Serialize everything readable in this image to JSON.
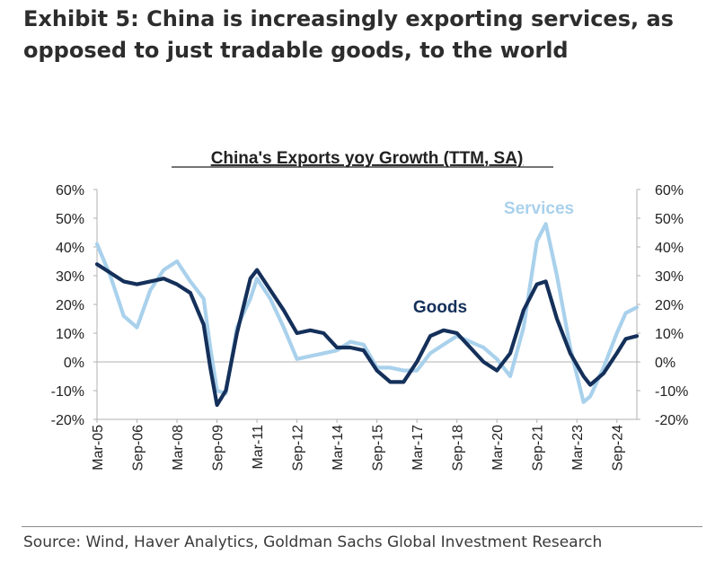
{
  "exhibit": {
    "title_line1": "Exhibit 5: China is increasingly exporting services, as",
    "title_line2": "opposed to just tradable goods, to the world"
  },
  "source": "Source: Wind, Haver Analytics, Goldman Sachs Global Investment Research",
  "colors": {
    "goods": "#14305a",
    "services": "#a9d1ec",
    "axis": "#b0b0b0",
    "text": "#222222"
  },
  "chart_data": {
    "type": "line",
    "title": "China's Exports yoy Growth (TTM, SA)",
    "xlabel": "",
    "ylabel": "",
    "ylim": [
      -20,
      60
    ],
    "y_ticks": [
      60,
      50,
      40,
      30,
      20,
      10,
      0,
      -10,
      -20
    ],
    "y_tick_labels": [
      "60%",
      "50%",
      "40%",
      "30%",
      "20%",
      "10%",
      "0%",
      "-10%",
      "-20%"
    ],
    "x_tick_labels": [
      "Mar-05",
      "Sep-06",
      "Mar-08",
      "Sep-09",
      "Mar-11",
      "Sep-12",
      "Mar-14",
      "Sep-15",
      "Mar-17",
      "Sep-18",
      "Mar-20",
      "Sep-21",
      "Mar-23",
      "Sep-24"
    ],
    "x_range": [
      "2005-03",
      "2025-06"
    ],
    "legend": "inline labels",
    "series": [
      {
        "name": "Goods",
        "label_position": "near Sep-18 peak",
        "values": [
          [
            "2005-03",
            34
          ],
          [
            "2005-09",
            31
          ],
          [
            "2006-03",
            28
          ],
          [
            "2006-09",
            27
          ],
          [
            "2007-03",
            28
          ],
          [
            "2007-09",
            29
          ],
          [
            "2008-03",
            27
          ],
          [
            "2008-09",
            24
          ],
          [
            "2009-03",
            13
          ],
          [
            "2009-06",
            -2
          ],
          [
            "2009-09",
            -15
          ],
          [
            "2010-01",
            -10
          ],
          [
            "2010-06",
            10
          ],
          [
            "2010-12",
            29
          ],
          [
            "2011-03",
            32
          ],
          [
            "2011-09",
            25
          ],
          [
            "2012-03",
            18
          ],
          [
            "2012-09",
            10
          ],
          [
            "2013-03",
            11
          ],
          [
            "2013-09",
            10
          ],
          [
            "2014-03",
            5
          ],
          [
            "2014-09",
            5
          ],
          [
            "2015-03",
            4
          ],
          [
            "2015-09",
            -3
          ],
          [
            "2016-03",
            -7
          ],
          [
            "2016-09",
            -7
          ],
          [
            "2017-03",
            0
          ],
          [
            "2017-09",
            9
          ],
          [
            "2018-03",
            11
          ],
          [
            "2018-09",
            10
          ],
          [
            "2019-03",
            5
          ],
          [
            "2019-09",
            0
          ],
          [
            "2020-03",
            -3
          ],
          [
            "2020-09",
            3
          ],
          [
            "2021-03",
            18
          ],
          [
            "2021-09",
            27
          ],
          [
            "2022-01",
            28
          ],
          [
            "2022-06",
            15
          ],
          [
            "2022-12",
            3
          ],
          [
            "2023-06",
            -5
          ],
          [
            "2023-09",
            -8
          ],
          [
            "2024-03",
            -4
          ],
          [
            "2024-09",
            3
          ],
          [
            "2025-01",
            8
          ],
          [
            "2025-06",
            9
          ]
        ]
      },
      {
        "name": "Services",
        "label_position": "above Sep-21 peak",
        "values": [
          [
            "2005-03",
            41
          ],
          [
            "2005-09",
            30
          ],
          [
            "2006-03",
            16
          ],
          [
            "2006-09",
            12
          ],
          [
            "2007-03",
            25
          ],
          [
            "2007-09",
            32
          ],
          [
            "2008-03",
            35
          ],
          [
            "2008-09",
            28
          ],
          [
            "2009-03",
            22
          ],
          [
            "2009-06",
            5
          ],
          [
            "2009-09",
            -10
          ],
          [
            "2010-01",
            -11
          ],
          [
            "2010-06",
            12
          ],
          [
            "2010-12",
            22
          ],
          [
            "2011-03",
            29
          ],
          [
            "2011-09",
            22
          ],
          [
            "2012-03",
            12
          ],
          [
            "2012-09",
            1
          ],
          [
            "2013-03",
            2
          ],
          [
            "2013-09",
            3
          ],
          [
            "2014-03",
            4
          ],
          [
            "2014-09",
            7
          ],
          [
            "2015-03",
            6
          ],
          [
            "2015-09",
            -2
          ],
          [
            "2016-03",
            -2
          ],
          [
            "2016-09",
            -3
          ],
          [
            "2017-03",
            -3
          ],
          [
            "2017-09",
            3
          ],
          [
            "2018-03",
            6
          ],
          [
            "2018-09",
            9
          ],
          [
            "2019-03",
            7
          ],
          [
            "2019-09",
            5
          ],
          [
            "2020-03",
            1
          ],
          [
            "2020-09",
            -5
          ],
          [
            "2021-03",
            12
          ],
          [
            "2021-09",
            42
          ],
          [
            "2022-01",
            48
          ],
          [
            "2022-06",
            30
          ],
          [
            "2022-12",
            5
          ],
          [
            "2023-06",
            -14
          ],
          [
            "2023-09",
            -12
          ],
          [
            "2024-03",
            -2
          ],
          [
            "2024-09",
            10
          ],
          [
            "2025-01",
            17
          ],
          [
            "2025-06",
            19
          ]
        ]
      }
    ]
  }
}
